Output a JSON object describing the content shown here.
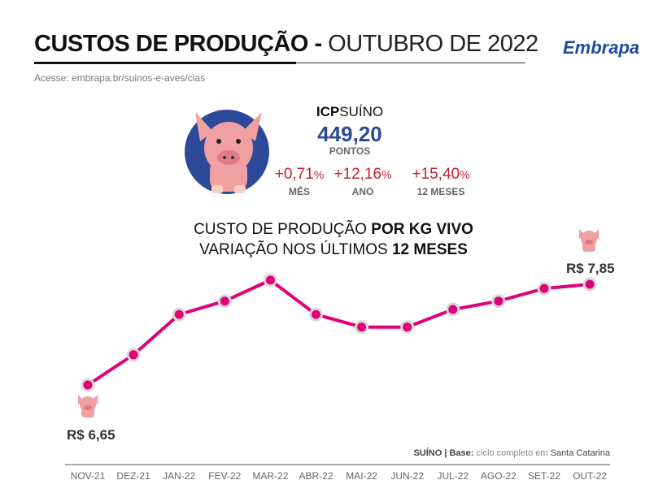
{
  "header": {
    "title_bold": "CUSTOS DE PRODUÇÃO -",
    "title_light": "OUTUBRO DE 2022",
    "subtitle": "Acesse: embrapa.br/suinos-e-aves/cias",
    "logo": "Embrapa"
  },
  "index": {
    "label_bold": "ICP",
    "label_light": "SUÍNO",
    "value": "449,20",
    "unit": "PONTOS",
    "variations": [
      {
        "value": "+0,71",
        "pct": "%",
        "label": "MÊS"
      },
      {
        "value": "+12,16",
        "pct": "%",
        "label": "ANO"
      },
      {
        "value": "+15,40",
        "pct": "%",
        "label": "12 MESES"
      }
    ]
  },
  "colors": {
    "line": "#e0007a",
    "marker_ring": "#d9d9d9",
    "circle": "#2d4a9a",
    "variation": "#c8202f",
    "pig": "#f0a0a0"
  },
  "chart_data": {
    "type": "line",
    "title_line1_light": "CUSTO DE PRODUÇÃO ",
    "title_line1_bold": "POR KG VIVO",
    "title_line2_light": "VARIAÇÃO NOS ÚLTIMOS ",
    "title_line2_bold": "12 MESES",
    "categories": [
      "NOV-21",
      "DEZ-21",
      "JAN-22",
      "FEV-22",
      "MAR-22",
      "ABR-22",
      "MAI-22",
      "JUN-22",
      "JUL-22",
      "AGO-22",
      "SET-22",
      "OUT-22"
    ],
    "values": [
      6.65,
      7.01,
      7.49,
      7.65,
      7.9,
      7.49,
      7.34,
      7.34,
      7.55,
      7.65,
      7.8,
      7.85
    ],
    "labels": {
      "first": "R$ 6,65",
      "last": "R$ 7,85"
    },
    "grid": false
  },
  "footer": {
    "base_bold": "SUÍNO | Base:",
    "base_light": " ciclo completo em ",
    "base_place": "Santa Catarina"
  }
}
